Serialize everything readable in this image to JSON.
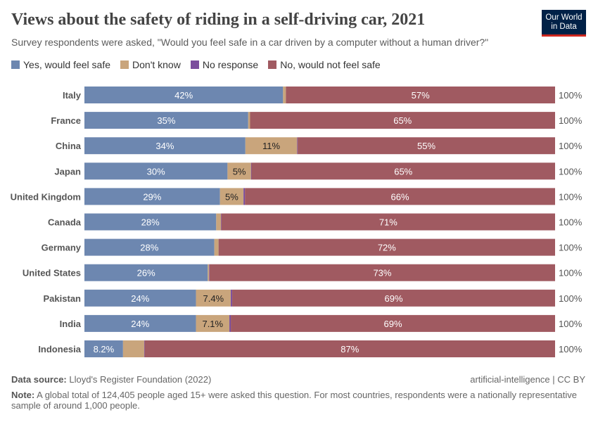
{
  "title": "Views about the safety of riding in a self-driving car, 2021",
  "subtitle": "Survey respondents were asked, \"Would you feel safe in a car driven by a computer without a human driver?\"",
  "logo": "Our World in Data",
  "footer": {
    "source_label": "Data source:",
    "source": "Lloyd's Register Foundation (2022)",
    "license": "artificial-intelligence | CC BY",
    "note_label": "Note:",
    "note": "A global total of 124,405 people aged 15+ were asked this question. For most countries, respondents were a nationally representative sample of around 1,000 people."
  },
  "chart_data": {
    "type": "bar",
    "orientation": "horizontal-stacked-100",
    "legend_position": "top",
    "categories": [
      "Italy",
      "France",
      "China",
      "Japan",
      "United Kingdom",
      "Canada",
      "Germany",
      "United States",
      "Pakistan",
      "India",
      "Indonesia"
    ],
    "series": [
      {
        "name": "Yes, would feel safe",
        "color": "#6d87b0",
        "values": [
          42.2,
          34.8,
          34.2,
          30.4,
          28.8,
          28.0,
          27.6,
          26.2,
          23.7,
          23.7,
          8.2
        ]
      },
      {
        "name": "Don't know",
        "color": "#c9a57c",
        "values": [
          0.6,
          0.4,
          11.0,
          5.0,
          5.0,
          1.0,
          0.9,
          0.3,
          7.4,
          7.1,
          4.5
        ]
      },
      {
        "name": "No response",
        "color": "#7b4d9d",
        "values": [
          0,
          0,
          0.1,
          0.1,
          0.3,
          0.1,
          0,
          0.1,
          0.3,
          0.3,
          0.1
        ]
      },
      {
        "name": "No, would not feel safe",
        "color": "#a05a61",
        "values": [
          57.2,
          64.8,
          54.7,
          64.5,
          65.9,
          70.9,
          71.5,
          73.4,
          68.6,
          68.9,
          87.2
        ]
      }
    ],
    "totals": [
      "100%",
      "100%",
      "100%",
      "100%",
      "100%",
      "100%",
      "100%",
      "100%",
      "100%",
      "100%",
      "100%"
    ]
  }
}
